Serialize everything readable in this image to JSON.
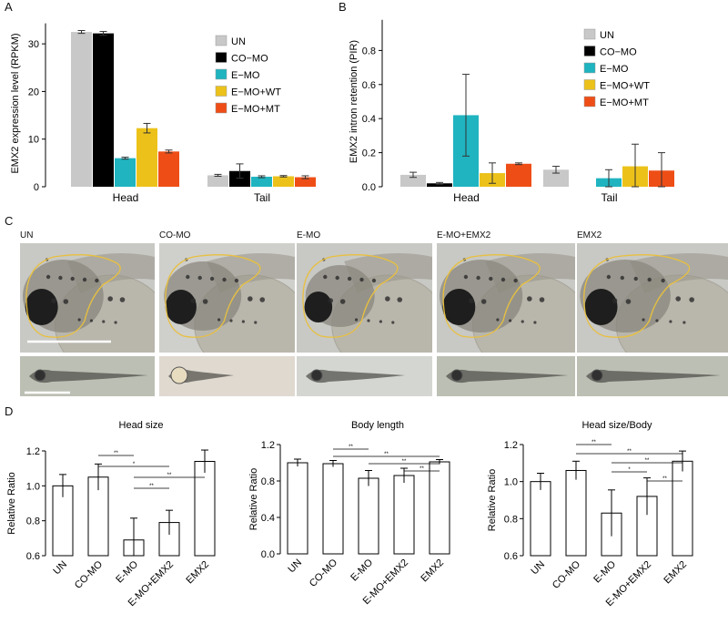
{
  "panels": {
    "a": "A",
    "b": "B",
    "c": "C",
    "d": "D"
  },
  "chart_data": [
    {
      "panel": "A",
      "type": "bar",
      "ylabel": "EMX2 expression level (RPKM)",
      "ylim": [
        0,
        35
      ],
      "yticks": [
        0,
        10,
        20,
        30
      ],
      "groups": [
        "Head",
        "Tail"
      ],
      "series": [
        {
          "name": "UN",
          "color": "#c8c8c8",
          "values": [
            32.5,
            2.4
          ],
          "errors": [
            0.3,
            0.2
          ]
        },
        {
          "name": "CO−MO",
          "color": "#000000",
          "values": [
            32.2,
            3.3
          ],
          "errors": [
            0.4,
            1.5
          ]
        },
        {
          "name": "E−MO",
          "color": "#1fb4c0",
          "values": [
            6.0,
            2.1
          ],
          "errors": [
            0.2,
            0.2
          ]
        },
        {
          "name": "E−MO+WT",
          "color": "#ecc21a",
          "values": [
            12.3,
            2.2
          ],
          "errors": [
            1.0,
            0.15
          ]
        },
        {
          "name": "E−MO+MT",
          "color": "#ee4e16",
          "values": [
            7.4,
            2.0
          ],
          "errors": [
            0.3,
            0.3
          ]
        }
      ],
      "legend_position": "right"
    },
    {
      "panel": "B",
      "type": "bar",
      "ylabel": "EMX2 intron  retention (PIR)",
      "ylim": [
        0,
        1.0
      ],
      "yticks": [
        "0.0",
        "0.2",
        "0.4",
        "0.6",
        "0.8"
      ],
      "groups": [
        "Head",
        "Tail"
      ],
      "series": [
        {
          "name": "UN",
          "color": "#c8c8c8",
          "values": [
            0.07,
            0.1
          ],
          "errors": [
            0.015,
            0.02
          ]
        },
        {
          "name": "CO−MO",
          "color": "#000000",
          "values": [
            0.02,
            0.0
          ],
          "errors": [
            0.005,
            0.0
          ]
        },
        {
          "name": "E−MO",
          "color": "#1fb4c0",
          "values": [
            0.42,
            0.05
          ],
          "errors": [
            0.24,
            0.05
          ]
        },
        {
          "name": "E−MO+WT",
          "color": "#ecc21a",
          "values": [
            0.08,
            0.12
          ],
          "errors": [
            0.06,
            0.13
          ]
        },
        {
          "name": "E−MO+MT",
          "color": "#ee4e16",
          "values": [
            0.135,
            0.095
          ],
          "errors": [
            0.005,
            0.105
          ]
        }
      ],
      "legend_position": "top-right"
    },
    {
      "panel": "D1",
      "type": "bar",
      "title": "Head size",
      "ylabel": "Relative Ratio",
      "ylim": [
        0.6,
        1.2
      ],
      "yticks": [
        "0.6",
        "0.8",
        "1.0",
        "1.2"
      ],
      "categories": [
        "UN",
        "CO-MO",
        "E-MO",
        "E-MO+EMX2",
        "EMX2"
      ],
      "values": [
        1.0,
        1.05,
        0.69,
        0.79,
        1.14
      ],
      "errors": [
        0.065,
        0.075,
        0.125,
        0.07,
        0.065
      ],
      "significance": [
        {
          "from": 1,
          "to": 2,
          "label": "**"
        },
        {
          "from": 1,
          "to": 3,
          "label": "*"
        },
        {
          "from": 2,
          "to": 4,
          "label": "**"
        },
        {
          "from": 2,
          "to": 3,
          "label": "**"
        }
      ]
    },
    {
      "panel": "D2",
      "type": "bar",
      "title": "Body length",
      "ylabel": "Relative Ratio",
      "ylim": [
        0,
        1.2
      ],
      "yticks": [
        "0.0",
        "0.4",
        "0.8",
        "1.2"
      ],
      "categories": [
        "UN",
        "CO-MO",
        "E-MO",
        "E-MO+EMX2",
        "EMX2"
      ],
      "values": [
        1.0,
        0.99,
        0.83,
        0.86,
        1.01
      ],
      "errors": [
        0.04,
        0.035,
        0.085,
        0.08,
        0.025
      ],
      "significance": [
        {
          "from": 1,
          "to": 2,
          "label": "**"
        },
        {
          "from": 1,
          "to": 4,
          "label": "**"
        },
        {
          "from": 2,
          "to": 4,
          "label": "**"
        },
        {
          "from": 3,
          "to": 4,
          "label": "**"
        }
      ]
    },
    {
      "panel": "D3",
      "type": "bar",
      "title": "Head size/Body",
      "ylabel": "Relative Ratio",
      "ylim": [
        0.6,
        1.2
      ],
      "yticks": [
        "0.6",
        "0.8",
        "1.0",
        "1.2"
      ],
      "categories": [
        "UN",
        "CO-MO",
        "E-MO",
        "E-MO+EMX2",
        "EMX2"
      ],
      "values": [
        1.0,
        1.06,
        0.83,
        0.92,
        1.11
      ],
      "errors": [
        0.045,
        0.05,
        0.125,
        0.1,
        0.055
      ],
      "significance": [
        {
          "from": 1,
          "to": 2,
          "label": "**"
        },
        {
          "from": 1,
          "to": 4,
          "label": "**"
        },
        {
          "from": 2,
          "to": 4,
          "label": "**"
        },
        {
          "from": 2,
          "to": 3,
          "label": "*"
        },
        {
          "from": 3,
          "to": 4,
          "label": "**"
        }
      ]
    }
  ],
  "photos": {
    "labels": [
      "UN",
      "CO-MO",
      "E-MO",
      "E-MO+EMX2",
      "EMX2"
    ],
    "outline_color": "#e8c040"
  }
}
